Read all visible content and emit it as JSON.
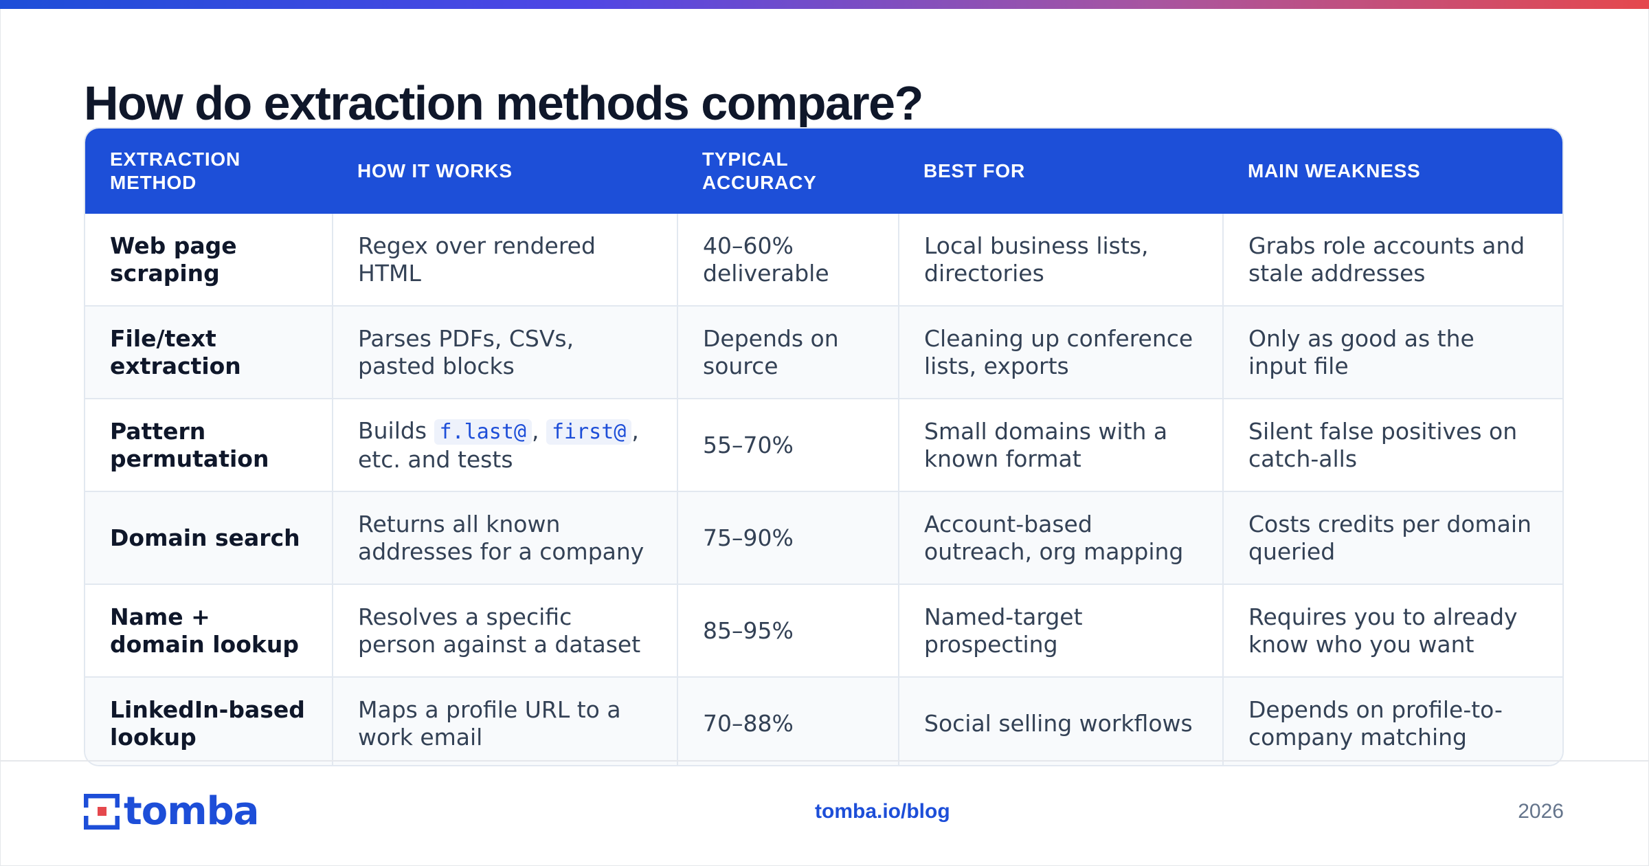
{
  "title": "How do extraction methods compare?",
  "colors": {
    "accent": "#1d4fd8",
    "gradient": [
      "#1d4ed8",
      "#4f46e5",
      "#a855a0",
      "#e5484d"
    ],
    "row_alt": "#f8fafc"
  },
  "table": {
    "headers": [
      "EXTRACTION METHOD",
      "HOW IT WORKS",
      "TYPICAL ACCURACY",
      "BEST FOR",
      "MAIN WEAKNESS"
    ],
    "rows": [
      {
        "method": "Web page scraping",
        "how": "Regex over rendered HTML",
        "accuracy": "40–60% deliverable",
        "best_for": "Local business lists, directories",
        "weakness": "Grabs role accounts and stale addresses"
      },
      {
        "method": "File/text extraction",
        "how": "Parses PDFs, CSVs, pasted blocks",
        "accuracy": "Depends on source",
        "best_for": "Cleaning up conference lists, exports",
        "weakness": "Only as good as the input file"
      },
      {
        "method": "Pattern permutation",
        "how_parts": {
          "prefix": "Builds",
          "code1": "f.last@",
          "sep": ",",
          "code2": "first@",
          "suffix": ", etc. and tests"
        },
        "accuracy": "55–70%",
        "best_for": "Small domains with a known format",
        "weakness": "Silent false positives on catch-alls"
      },
      {
        "method": "Domain search",
        "how": "Returns all known addresses for a company",
        "accuracy": "75–90%",
        "best_for": "Account-based outreach, org mapping",
        "weakness": "Costs credits per domain queried"
      },
      {
        "method": "Name + domain lookup",
        "how": "Resolves a specific person against a dataset",
        "accuracy": "85–95%",
        "best_for": "Named-target prospecting",
        "weakness": "Requires you to already know who you want"
      },
      {
        "method": "LinkedIn-based lookup",
        "how": "Maps a profile URL to a work email",
        "accuracy": "70–88%",
        "best_for": "Social selling workflows",
        "weakness": "Depends on profile-to-company matching"
      }
    ]
  },
  "footer": {
    "logo_text": "tomba",
    "logo_icon": "tomba-logo-icon",
    "site": "tomba.io/blog",
    "year": "2026"
  }
}
